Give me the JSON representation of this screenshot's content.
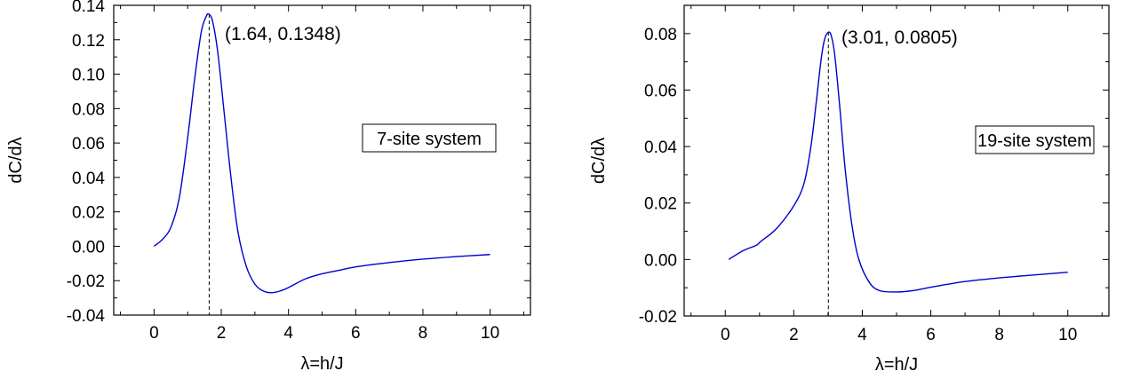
{
  "chart_data": [
    {
      "type": "line",
      "title": "",
      "xlabel": "λ=h/J",
      "ylabel": "dC/dλ",
      "xlim": [
        -1.2,
        11.2
      ],
      "ylim": [
        -0.04,
        0.14
      ],
      "xticks": [
        0,
        2,
        4,
        6,
        8,
        10
      ],
      "yticks": [
        -0.04,
        -0.02,
        0.0,
        0.02,
        0.04,
        0.06,
        0.08,
        0.1,
        0.12,
        0.14
      ],
      "xtick_labels": [
        "0",
        "2",
        "4",
        "6",
        "8",
        "10"
      ],
      "ytick_labels": [
        "-0.04",
        "-0.02",
        "0.00",
        "0.02",
        "0.04",
        "0.06",
        "0.08",
        "0.10",
        "0.12",
        "0.14"
      ],
      "line_color": "#0000cc",
      "peak": {
        "x": 1.64,
        "y": 0.1348
      },
      "peak_label": "(1.64, 0.1348)",
      "box_label": "7-site system",
      "series": [
        {
          "x": [
            0,
            0.25,
            0.5,
            0.75,
            1.0,
            1.2,
            1.4,
            1.55,
            1.64,
            1.75,
            1.9,
            2.1,
            2.3,
            2.5,
            2.75,
            3.0,
            3.25,
            3.5,
            3.75,
            4.0,
            4.5,
            5.0,
            5.5,
            6.0,
            7.0,
            8.0,
            9.0,
            10.0
          ],
          "y": [
            0.0,
            0.004,
            0.011,
            0.028,
            0.063,
            0.096,
            0.124,
            0.1335,
            0.1348,
            0.13,
            0.112,
            0.075,
            0.038,
            0.008,
            -0.012,
            -0.022,
            -0.026,
            -0.027,
            -0.026,
            -0.024,
            -0.019,
            -0.016,
            -0.014,
            -0.012,
            -0.0095,
            -0.0075,
            -0.006,
            -0.0048
          ]
        }
      ]
    },
    {
      "type": "line",
      "title": "",
      "xlabel": "λ=h/J",
      "ylabel": "dC/dλ",
      "xlim": [
        -1.2,
        11.2
      ],
      "ylim": [
        -0.02,
        0.09
      ],
      "xticks": [
        0,
        2,
        4,
        6,
        8,
        10
      ],
      "yticks": [
        -0.02,
        0.0,
        0.02,
        0.04,
        0.06,
        0.08
      ],
      "xtick_labels": [
        "0",
        "2",
        "4",
        "6",
        "8",
        "10"
      ],
      "ytick_labels": [
        "-0.02",
        "0.00",
        "0.02",
        "0.04",
        "0.06",
        "0.08"
      ],
      "line_color": "#0000cc",
      "peak": {
        "x": 3.01,
        "y": 0.0805
      },
      "peak_label": "(3.01, 0.0805)",
      "box_label": "19-site system",
      "series": [
        {
          "x": [
            0.1,
            0.5,
            0.9,
            1.0,
            1.1,
            1.5,
            2.0,
            2.3,
            2.5,
            2.65,
            2.8,
            2.9,
            3.01,
            3.1,
            3.2,
            3.35,
            3.5,
            3.7,
            3.9,
            4.2,
            4.5,
            5.0,
            5.5,
            6.0,
            7.0,
            8.0,
            9.0,
            10.0
          ],
          "y": [
            0.0,
            0.003,
            0.005,
            0.006,
            0.007,
            0.011,
            0.019,
            0.027,
            0.04,
            0.055,
            0.071,
            0.078,
            0.0805,
            0.079,
            0.072,
            0.053,
            0.032,
            0.012,
            0.0,
            -0.008,
            -0.011,
            -0.0115,
            -0.011,
            -0.0098,
            -0.0078,
            -0.0065,
            -0.0055,
            -0.0045
          ]
        }
      ]
    }
  ]
}
